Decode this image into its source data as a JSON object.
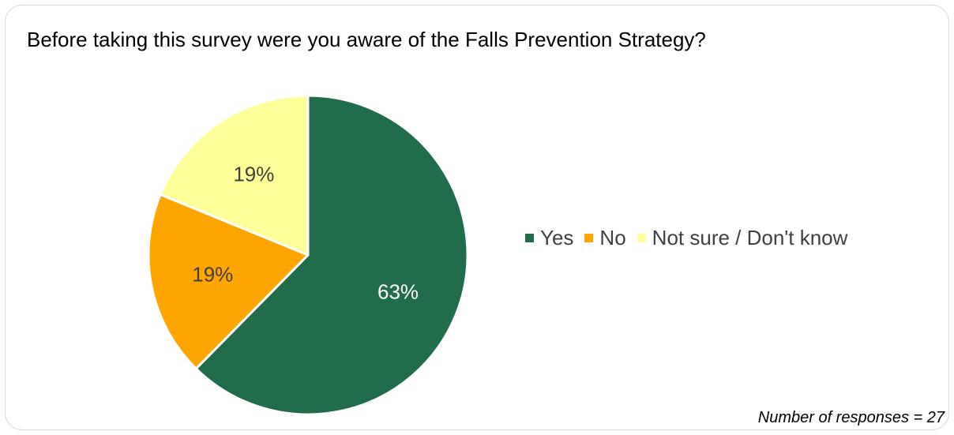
{
  "chart_data": {
    "type": "pie",
    "title": "Before taking this survey were you aware of the Falls Prevention Strategy?",
    "categories": [
      "Yes",
      "No",
      "Not sure / Don't know"
    ],
    "values": [
      63,
      19,
      19
    ],
    "data_labels": [
      "63%",
      "19%",
      "19%"
    ],
    "colors": [
      "#216c4a",
      "#ffa500",
      "#ffff99"
    ],
    "label_colors": [
      "#ffffff",
      "#404040",
      "#404040"
    ],
    "legend_position": "right",
    "footnote": "Number of responses = 27"
  }
}
